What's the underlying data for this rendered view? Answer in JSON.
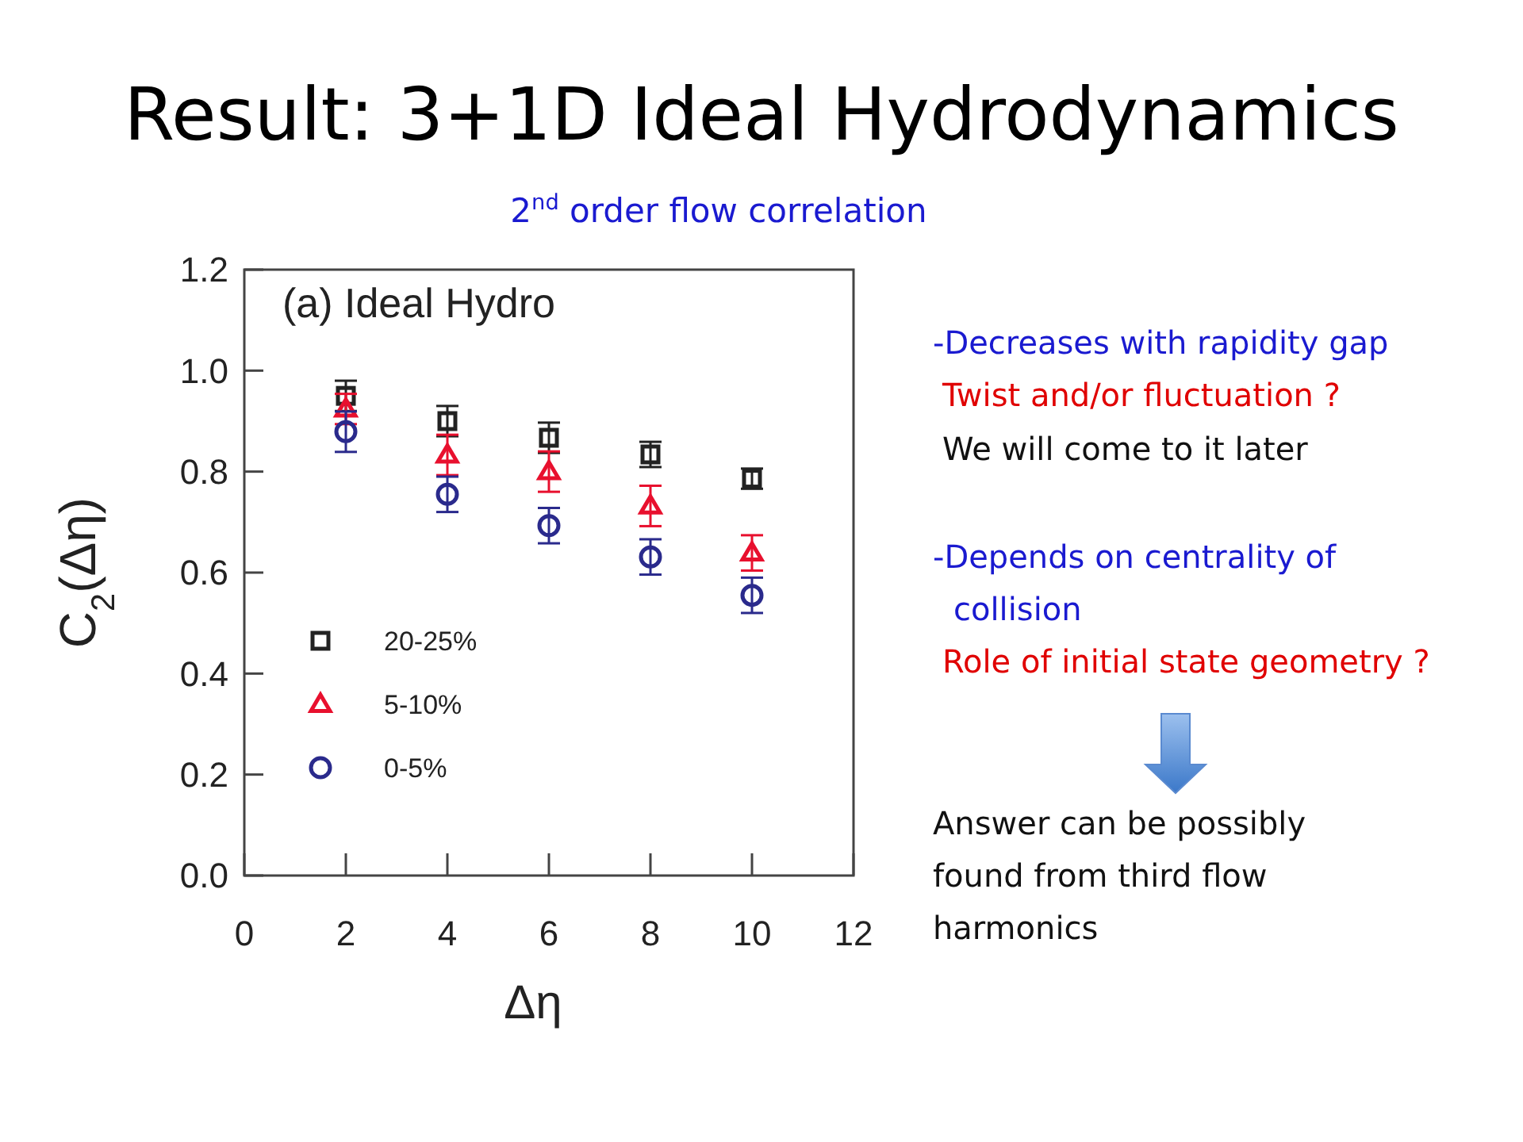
{
  "chart_data": {
    "type": "scatter",
    "title": "Result: 3+1D Ideal Hydrodynamics",
    "subtitle": "2$^{nd}$ order flow correlation",
    "xlabel": "Δη",
    "ylabel": "C$_{2}$(Δη)",
    "x": [
      2,
      4,
      6,
      8,
      10
    ],
    "series": [
      {
        "name": "20-25%",
        "color": "#222222",
        "marker": "square",
        "values": [
          0.95,
          0.9,
          0.867,
          0.834,
          0.786
        ],
        "errors": [
          0.03,
          0.03,
          0.03,
          0.025,
          0.02
        ]
      },
      {
        "name": "5-10%",
        "color": "#e8102e",
        "marker": "triangle",
        "values": [
          0.924,
          0.833,
          0.8,
          0.732,
          0.639
        ],
        "errors": [
          0.03,
          0.04,
          0.04,
          0.04,
          0.035
        ]
      },
      {
        "name": "0-5%",
        "color": "#2a2a8c",
        "marker": "circle",
        "values": [
          0.879,
          0.755,
          0.693,
          0.631,
          0.555
        ],
        "errors": [
          0.04,
          0.035,
          0.035,
          0.035,
          0.035
        ]
      }
    ],
    "xlim": [
      0,
      12
    ],
    "xticks": [
      0,
      2,
      4,
      6,
      8,
      10,
      12
    ],
    "ylim": [
      0,
      1.2
    ],
    "yticks": [
      {
        "value": 0,
        "label": "0.0"
      },
      {
        "value": 0.2,
        "label": "0.2"
      },
      {
        "value": 0.4,
        "label": "0.4"
      },
      {
        "value": 0.6,
        "label": "0.6"
      },
      {
        "value": 0.8,
        "label": "0.8"
      },
      {
        "value": 1.0,
        "label": "1.0"
      },
      {
        "value": 1.2,
        "label": "1.2"
      }
    ],
    "grid": false,
    "legend": "bottom left",
    "annotations": [
      "(a) Ideal Hydro",
      "-Decreases with rapidity gap",
      "Twist and/or fluctuation ?",
      "We will come to it later",
      "-Depends on centrality of",
      "collision",
      "Role of initial state geometry ?",
      "Answer can be possibly",
      "found from third flow",
      "harmonics"
    ]
  }
}
